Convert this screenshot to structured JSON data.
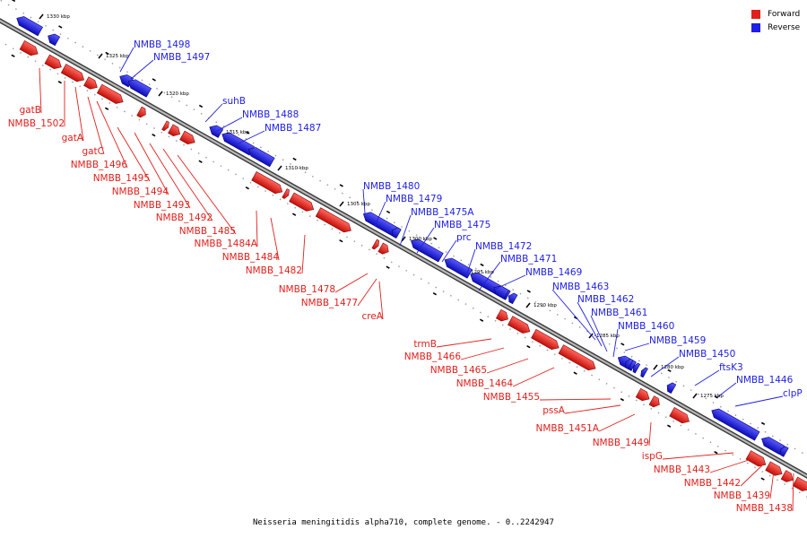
{
  "legend": {
    "forward": "Forward",
    "reverse": "Reverse",
    "forward_color": "#e0201c",
    "reverse_color": "#1e1ee6"
  },
  "caption": "Neisseria meningitidis alpha710, complete genome. - 0..2242947",
  "scale_labels": [
    "1330 kbp",
    "1325 kbp",
    "1320 kbp",
    "1315 kbp",
    "1310 kbp",
    "1305 kbp",
    "1300 kbp",
    "1295 kbp",
    "1290 kbp",
    "1285 kbp",
    "1280 kbp",
    "1275 kbp"
  ],
  "reverse_labels": [
    "NMBB_1498",
    "NMBB_1497",
    "suhB",
    "NMBB_1488",
    "NMBB_1487",
    "NMBB_1480",
    "NMBB_1479",
    "NMBB_1475A",
    "NMBB_1475",
    "prc",
    "NMBB_1472",
    "NMBB_1471",
    "NMBB_1469",
    "NMBB_1463",
    "NMBB_1462",
    "NMBB_1461",
    "NMBB_1460",
    "NMBB_1459",
    "NMBB_1450",
    "ftsK3",
    "NMBB_1446",
    "clpP"
  ],
  "forward_labels": [
    "gatB",
    "NMBB_1502",
    "gatA",
    "gatC",
    "NMBB_1496",
    "NMBB_1495",
    "NMBB_1494",
    "NMBB_1493",
    "NMBB_1492",
    "NMBB_1485",
    "NMBB_1484A",
    "NMBB_1484",
    "NMBB_1482",
    "NMBB_1478",
    "NMBB_1477",
    "creA",
    "trmB",
    "NMBB_1466",
    "NMBB_1465",
    "NMBB_1464",
    "NMBB_1455",
    "pssA",
    "NMBB_1451A",
    "NMBB_1449",
    "ispG",
    "NMBB_1443",
    "NMBB_1442",
    "NMBB_1439",
    "NMBB_1438"
  ]
}
